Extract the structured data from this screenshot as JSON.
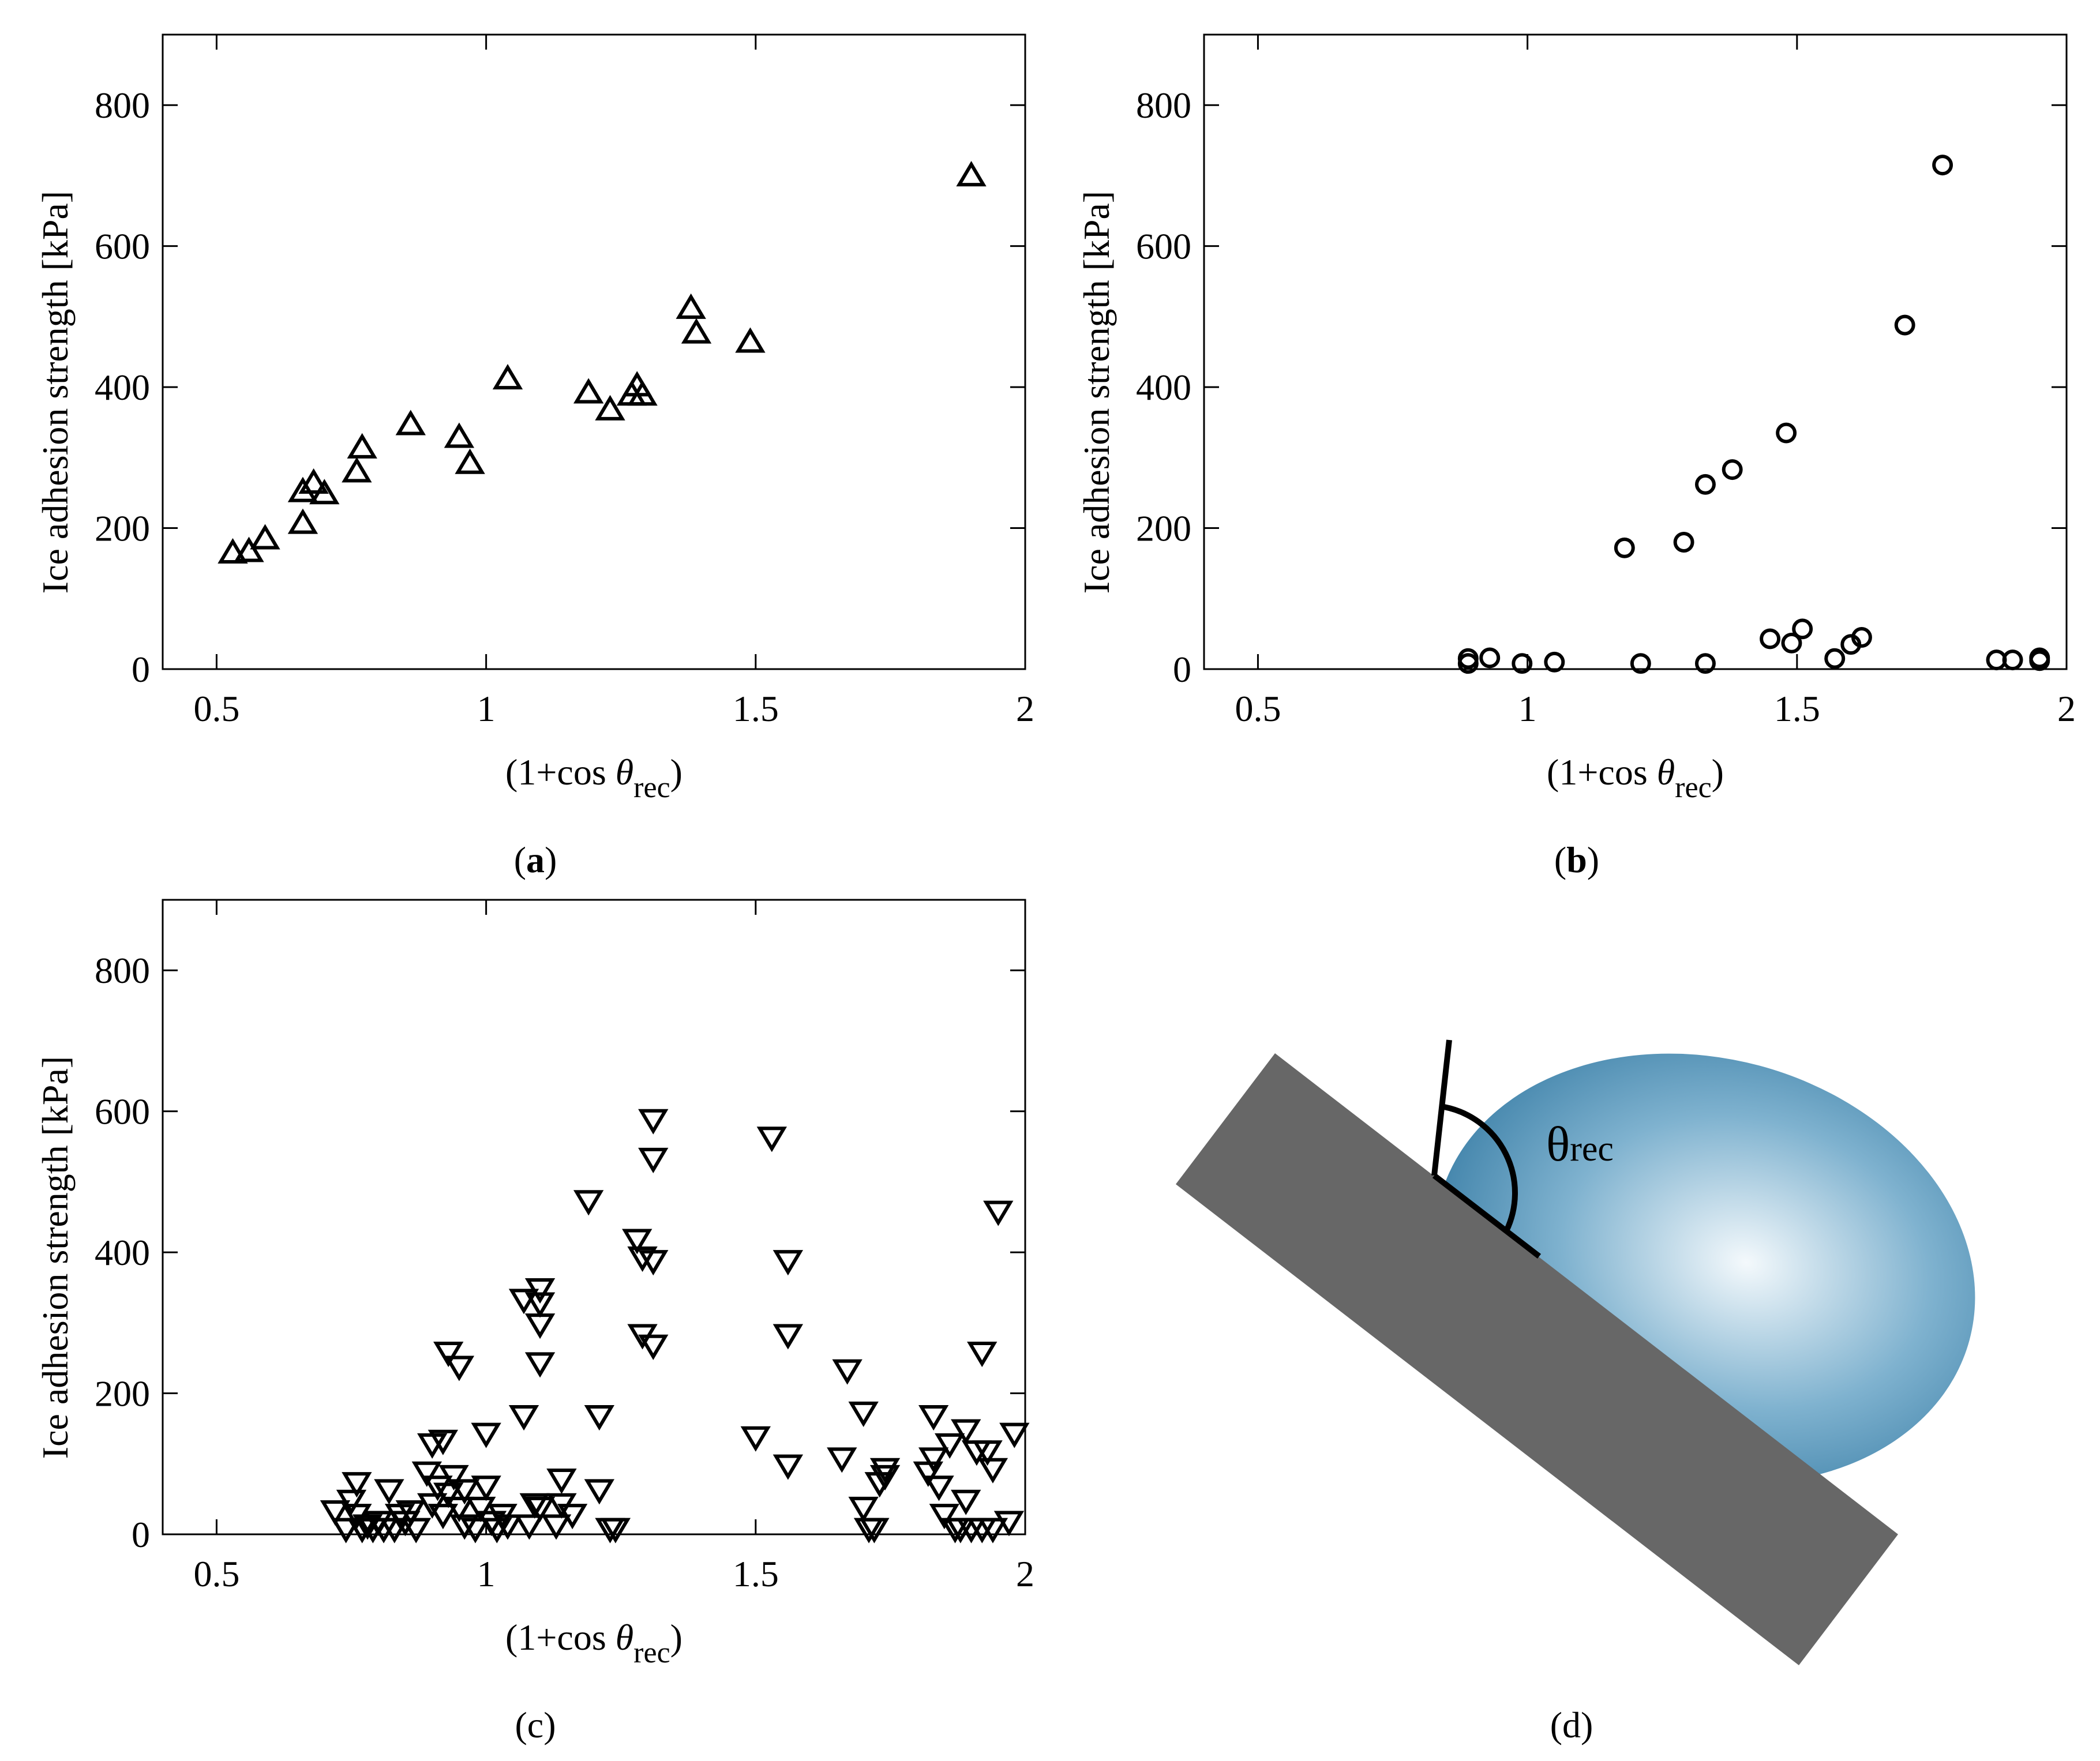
{
  "panels_meta": {
    "ylabel": "Ice adhesion strength [kPa]",
    "xlabel_prefix": "(1+cos ",
    "xlabel_theta": "θ",
    "xlabel_sub": "rec",
    "xlabel_suffix": ")"
  },
  "chart_data": [
    {
      "id": "a",
      "type": "scatter",
      "caption": "a",
      "marker": "triangle-up",
      "xlabel": "(1+cos θrec)",
      "ylabel": "Ice adhesion strength [kPa]",
      "xlim": [
        0.4,
        2.0
      ],
      "ylim": [
        0,
        900
      ],
      "xticks": [
        0.5,
        1,
        1.5,
        2
      ],
      "xtick_labels": [
        "0.5",
        "1",
        "1.5",
        "2"
      ],
      "yticks": [
        0,
        200,
        400,
        600,
        800
      ],
      "ytick_labels": [
        "0",
        "200",
        "400",
        "600",
        "800"
      ],
      "points": [
        [
          0.53,
          163
        ],
        [
          0.56,
          165
        ],
        [
          0.59,
          183
        ],
        [
          0.66,
          205
        ],
        [
          0.66,
          250
        ],
        [
          0.68,
          262
        ],
        [
          0.7,
          247
        ],
        [
          0.76,
          278
        ],
        [
          0.77,
          312
        ],
        [
          0.86,
          345
        ],
        [
          0.95,
          327
        ],
        [
          0.97,
          290
        ],
        [
          1.04,
          410
        ],
        [
          1.19,
          390
        ],
        [
          1.23,
          366
        ],
        [
          1.27,
          387
        ],
        [
          1.28,
          400
        ],
        [
          1.29,
          387
        ],
        [
          1.38,
          510
        ],
        [
          1.39,
          475
        ],
        [
          1.49,
          462
        ],
        [
          1.9,
          698
        ]
      ]
    },
    {
      "id": "b",
      "type": "scatter",
      "caption": "b",
      "marker": "circle",
      "xlabel": "(1+cos θrec)",
      "ylabel": "Ice adhesion strength [kPa]",
      "xlim": [
        0.4,
        2.0
      ],
      "ylim": [
        0,
        900
      ],
      "xticks": [
        0.5,
        1,
        1.5,
        2
      ],
      "xtick_labels": [
        "0.5",
        "1",
        "1.5",
        "2"
      ],
      "yticks": [
        0,
        200,
        400,
        600,
        800
      ],
      "ytick_labels": [
        "0",
        "200",
        "400",
        "600",
        "800"
      ],
      "points": [
        [
          0.89,
          8
        ],
        [
          0.89,
          15
        ],
        [
          0.93,
          16
        ],
        [
          0.99,
          8
        ],
        [
          1.05,
          10
        ],
        [
          1.18,
          172
        ],
        [
          1.21,
          8
        ],
        [
          1.29,
          180
        ],
        [
          1.33,
          8
        ],
        [
          1.33,
          262
        ],
        [
          1.38,
          283
        ],
        [
          1.45,
          43
        ],
        [
          1.48,
          335
        ],
        [
          1.49,
          37
        ],
        [
          1.51,
          57
        ],
        [
          1.57,
          15
        ],
        [
          1.6,
          35
        ],
        [
          1.62,
          45
        ],
        [
          1.7,
          488
        ],
        [
          1.77,
          715
        ],
        [
          1.87,
          13
        ],
        [
          1.9,
          13
        ],
        [
          1.95,
          16
        ],
        [
          1.95,
          12
        ]
      ]
    },
    {
      "id": "c",
      "type": "scatter",
      "caption": "c",
      "marker": "triangle-down",
      "xlabel": "(1+cos θrec)",
      "ylabel": "Ice adhesion strength [kPa]",
      "xlim": [
        0.4,
        2.0
      ],
      "ylim": [
        0,
        900
      ],
      "xticks": [
        0.5,
        1,
        1.5,
        2
      ],
      "xtick_labels": [
        "0.5",
        "1",
        "1.5",
        "2"
      ],
      "yticks": [
        0,
        200,
        400,
        600,
        800
      ],
      "ytick_labels": [
        "0",
        "200",
        "400",
        "600",
        "800"
      ],
      "points": [
        [
          0.72,
          35
        ],
        [
          0.74,
          10
        ],
        [
          0.75,
          50
        ],
        [
          0.76,
          75
        ],
        [
          0.76,
          30
        ],
        [
          0.77,
          10
        ],
        [
          0.78,
          15
        ],
        [
          0.79,
          10
        ],
        [
          0.8,
          20
        ],
        [
          0.81,
          10
        ],
        [
          0.82,
          65
        ],
        [
          0.83,
          10
        ],
        [
          0.84,
          30
        ],
        [
          0.85,
          20
        ],
        [
          0.86,
          35
        ],
        [
          0.87,
          10
        ],
        [
          0.89,
          90
        ],
        [
          0.9,
          45
        ],
        [
          0.9,
          130
        ],
        [
          0.91,
          70
        ],
        [
          0.92,
          30
        ],
        [
          0.92,
          135
        ],
        [
          0.93,
          60
        ],
        [
          0.93,
          260
        ],
        [
          0.94,
          85
        ],
        [
          0.95,
          40
        ],
        [
          0.95,
          240
        ],
        [
          0.96,
          65
        ],
        [
          0.96,
          15
        ],
        [
          0.98,
          10
        ],
        [
          0.99,
          40
        ],
        [
          1.0,
          70
        ],
        [
          1.0,
          145
        ],
        [
          1.01,
          20
        ],
        [
          1.02,
          10
        ],
        [
          1.03,
          30
        ],
        [
          1.04,
          15
        ],
        [
          1.07,
          335
        ],
        [
          1.07,
          170
        ],
        [
          1.08,
          15
        ],
        [
          1.09,
          45
        ],
        [
          1.1,
          350
        ],
        [
          1.1,
          330
        ],
        [
          1.1,
          40
        ],
        [
          1.1,
          300
        ],
        [
          1.1,
          245
        ],
        [
          1.13,
          15
        ],
        [
          1.14,
          80
        ],
        [
          1.14,
          45
        ],
        [
          1.16,
          30
        ],
        [
          1.19,
          475
        ],
        [
          1.21,
          170
        ],
        [
          1.21,
          65
        ],
        [
          1.23,
          10
        ],
        [
          1.24,
          10
        ],
        [
          1.28,
          420
        ],
        [
          1.29,
          395
        ],
        [
          1.29,
          285
        ],
        [
          1.31,
          390
        ],
        [
          1.31,
          590
        ],
        [
          1.31,
          535
        ],
        [
          1.31,
          270
        ],
        [
          1.5,
          140
        ],
        [
          1.53,
          565
        ],
        [
          1.56,
          390
        ],
        [
          1.56,
          285
        ],
        [
          1.56,
          100
        ],
        [
          1.66,
          110
        ],
        [
          1.67,
          235
        ],
        [
          1.7,
          175
        ],
        [
          1.7,
          40
        ],
        [
          1.71,
          10
        ],
        [
          1.72,
          10
        ],
        [
          1.73,
          75
        ],
        [
          1.74,
          95
        ],
        [
          1.74,
          85
        ],
        [
          1.82,
          90
        ],
        [
          1.83,
          110
        ],
        [
          1.83,
          170
        ],
        [
          1.84,
          70
        ],
        [
          1.85,
          30
        ],
        [
          1.86,
          130
        ],
        [
          1.87,
          10
        ],
        [
          1.88,
          10
        ],
        [
          1.89,
          50
        ],
        [
          1.89,
          150
        ],
        [
          1.9,
          10
        ],
        [
          1.91,
          120
        ],
        [
          1.92,
          260
        ],
        [
          1.92,
          10
        ],
        [
          1.93,
          120
        ],
        [
          1.94,
          95
        ],
        [
          1.94,
          10
        ],
        [
          1.95,
          460
        ],
        [
          1.97,
          20
        ],
        [
          1.98,
          145
        ]
      ]
    }
  ],
  "diagram": {
    "caption": "d",
    "angle_label": "θ",
    "angle_sub": "rec",
    "colors": {
      "substrate": "#676767",
      "droplet_center": "#f4f9fc",
      "droplet_mid": "#7fb2cf",
      "droplet_edge": "#3a7ea6",
      "line": "#000000"
    }
  }
}
